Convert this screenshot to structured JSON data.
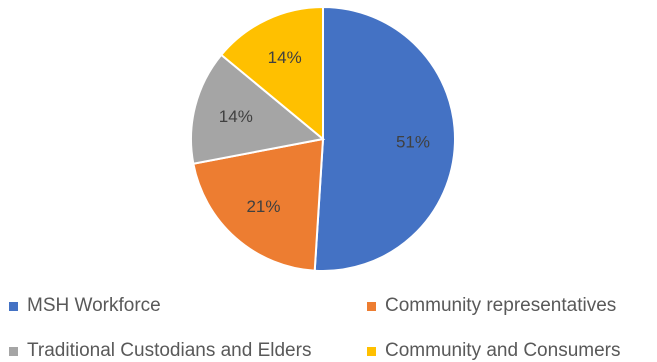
{
  "chart_data": {
    "type": "pie",
    "categories": [
      "MSH Workforce",
      "Community representatives",
      "Traditional Custodians and Elders",
      "Community and Consumers"
    ],
    "values": [
      51,
      21,
      14,
      14
    ],
    "labels": [
      "51%",
      "21%",
      "14%",
      "14%"
    ],
    "colors": [
      "#4472C4",
      "#ED7D31",
      "#A5A5A5",
      "#FFC000"
    ],
    "title": "",
    "legend_position": "bottom",
    "start_angle": "12 o'clock",
    "direction": "clockwise"
  }
}
